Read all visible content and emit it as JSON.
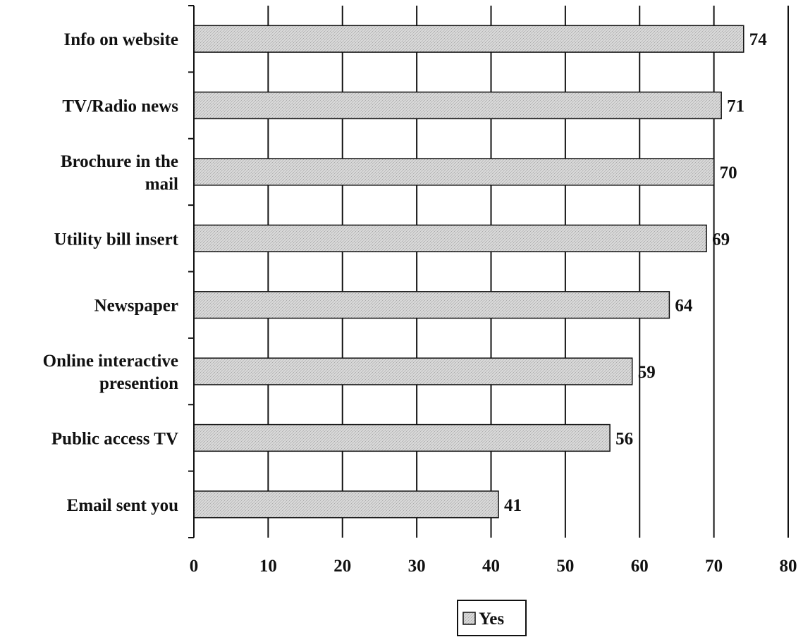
{
  "chart_data": {
    "type": "bar",
    "orientation": "horizontal",
    "categories": [
      [
        "Info on website"
      ],
      [
        "TV/Radio news"
      ],
      [
        "Brochure in the",
        "mail"
      ],
      [
        "Utility bill insert"
      ],
      [
        "Newspaper"
      ],
      [
        "Online interactive",
        "presention"
      ],
      [
        "Public access TV"
      ],
      [
        "Email sent you"
      ]
    ],
    "series": [
      {
        "name": "Yes",
        "values": [
          74,
          71,
          70,
          69,
          64,
          59,
          56,
          41
        ]
      }
    ],
    "xlim": [
      0,
      80
    ],
    "x_ticks": [
      0,
      10,
      20,
      30,
      40,
      50,
      60,
      70,
      80
    ],
    "grid": "vertical",
    "legend": {
      "position": "bottom-center",
      "entries": [
        "Yes"
      ]
    },
    "data_labels": true,
    "colors": {
      "bar_fill": "#d4d4d4",
      "bar_stroke": "#111111",
      "grid": "#111111"
    }
  }
}
